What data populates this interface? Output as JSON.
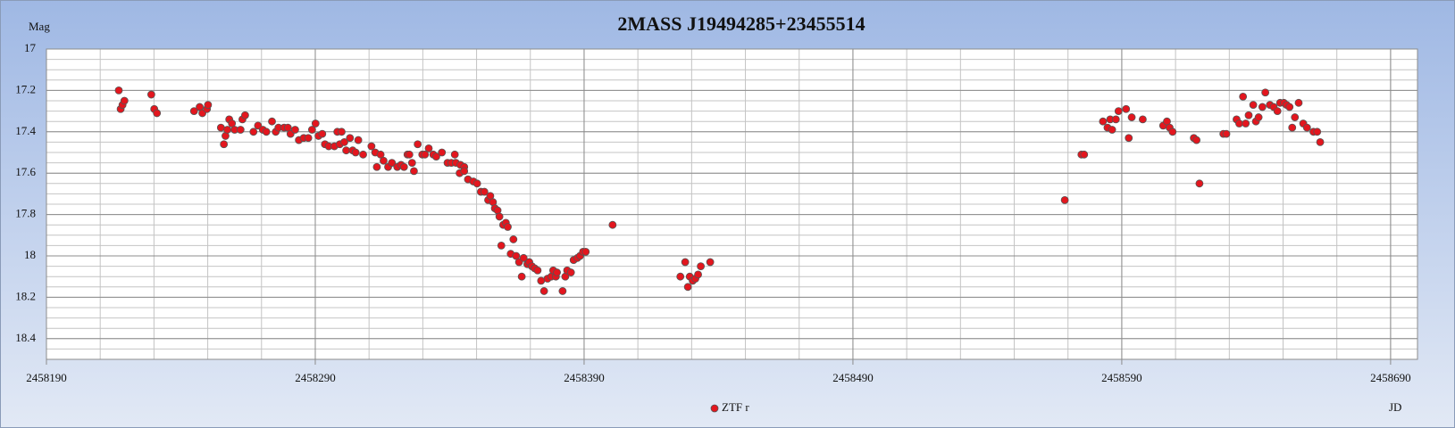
{
  "chart_data": {
    "type": "scatter",
    "title": "2MASS J19494285+23455514",
    "y_label": "Mag",
    "x_label": "JD",
    "xlim": [
      2458190,
      2458700
    ],
    "ylim": [
      17,
      18.5
    ],
    "y_inverted": true,
    "xticks": [
      2458190,
      2458290,
      2458390,
      2458490,
      2458590,
      2458690
    ],
    "yticks": [
      17,
      17.2,
      17.4,
      17.6,
      17.8,
      18,
      18.2,
      18.4
    ],
    "xgrid_step": 20,
    "ygrid_step": 0.05,
    "grid": true,
    "legend": "bottom",
    "series": [
      {
        "name": "ZTF r",
        "color": "#e3161e",
        "x": [
          2458216.9,
          2458217.6,
          2458218.3,
          2458219.0,
          2458229.0,
          2458230.1,
          2458231.1,
          2458244.9,
          2458247.0,
          2458248.0,
          2458249.7,
          2458250.1,
          2458254.9,
          2458256.0,
          2458256.6,
          2458257.3,
          2458258.0,
          2458259.0,
          2458260.0,
          2458262.2,
          2458262.9,
          2458263.9,
          2458267.0,
          2458268.7,
          2458270.5,
          2458271.8,
          2458273.9,
          2458275.3,
          2458276.3,
          2458278.4,
          2458279.8,
          2458280.8,
          2458282.5,
          2458283.9,
          2458285.7,
          2458287.4,
          2458288.8,
          2458290.1,
          2458291.2,
          2458292.6,
          2458293.6,
          2458295.0,
          2458297.1,
          2458298.2,
          2458299.1,
          2458299.8,
          2458300.8,
          2458301.5,
          2458302.9,
          2458303.9,
          2458305.0,
          2458306.0,
          2458307.8,
          2458310.9,
          2458312.3,
          2458312.9,
          2458314.3,
          2458315.4,
          2458317.1,
          2458318.5,
          2458320.5,
          2458321.9,
          2458323.0,
          2458324.3,
          2458325.0,
          2458326.0,
          2458326.7,
          2458328.1,
          2458329.8,
          2458330.8,
          2458332.2,
          2458333.9,
          2458335.0,
          2458337.1,
          2458339.2,
          2458340.6,
          2458341.9,
          2458342.3,
          2458343.7,
          2458344.0,
          2458345.4,
          2458345.4,
          2458346.8,
          2458348.8,
          2458350.2,
          2458351.6,
          2458352.9,
          2458354.3,
          2458355.1,
          2458356.1,
          2458356.8,
          2458357.8,
          2458358.5,
          2458359.2,
          2458359.9,
          2458360.9,
          2458361.6,
          2458362.7,
          2458363.7,
          2458364.7,
          2458365.8,
          2458366.8,
          2458367.5,
          2458368.9,
          2458369.6,
          2458370.6,
          2458371.6,
          2458372.7,
          2458374.0,
          2458375.1,
          2458376.4,
          2458377.8,
          2458378.5,
          2458379.5,
          2458379.9,
          2458382.0,
          2458383.0,
          2458383.7,
          2458385.1,
          2458386.1,
          2458387.5,
          2458388.5,
          2458389.6,
          2458390.6,
          2458400.6,
          2458425.8,
          2458427.6,
          2458428.6,
          2458429.3,
          2458430.4,
          2458431.4,
          2458432.4,
          2458433.4,
          2458436.9,
          2458568.8,
          2458575.0,
          2458576.0,
          2458583.0,
          2458584.7,
          2458585.7,
          2458586.4,
          2458587.8,
          2458588.8,
          2458591.6,
          2458592.6,
          2458593.7,
          2458597.8,
          2458605.4,
          2458606.8,
          2458607.8,
          2458608.9,
          2458616.8,
          2458617.8,
          2458618.9,
          2458627.8,
          2458628.9,
          2458632.7,
          2458633.7,
          2458635.1,
          2458636.1,
          2458637.2,
          2458638.9,
          2458639.9,
          2458640.9,
          2458642.3,
          2458643.4,
          2458645.1,
          2458646.5,
          2458647.9,
          2458648.9,
          2458650.3,
          2458651.3,
          2458652.4,
          2458653.4,
          2458654.4,
          2458655.8,
          2458657.5,
          2458658.9,
          2458661.3,
          2458662.7,
          2458663.8
        ],
        "values": [
          17.2,
          17.29,
          17.27,
          17.25,
          17.22,
          17.29,
          17.31,
          17.3,
          17.28,
          17.31,
          17.29,
          17.27,
          17.38,
          17.46,
          17.42,
          17.39,
          17.34,
          17.36,
          17.39,
          17.39,
          17.34,
          17.32,
          17.4,
          17.37,
          17.39,
          17.4,
          17.35,
          17.4,
          17.38,
          17.38,
          17.38,
          17.41,
          17.39,
          17.44,
          17.43,
          17.43,
          17.39,
          17.36,
          17.42,
          17.41,
          17.46,
          17.47,
          17.47,
          17.4,
          17.46,
          17.4,
          17.45,
          17.49,
          17.43,
          17.49,
          17.5,
          17.44,
          17.51,
          17.47,
          17.5,
          17.57,
          17.51,
          17.54,
          17.57,
          17.55,
          17.57,
          17.56,
          17.57,
          17.51,
          17.51,
          17.55,
          17.59,
          17.46,
          17.51,
          17.51,
          17.48,
          17.51,
          17.52,
          17.5,
          17.55,
          17.55,
          17.51,
          17.55,
          17.6,
          17.56,
          17.57,
          17.59,
          17.63,
          17.64,
          17.65,
          17.69,
          17.69,
          17.73,
          17.71,
          17.74,
          17.77,
          17.78,
          17.81,
          17.95,
          17.85,
          17.84,
          17.86,
          17.99,
          17.92,
          18.0,
          18.03,
          18.1,
          18.01,
          18.04,
          18.03,
          18.05,
          18.06,
          18.07,
          18.12,
          18.17,
          18.11,
          18.1,
          18.07,
          18.1,
          18.08,
          18.17,
          18.1,
          18.07,
          18.08,
          18.02,
          18.01,
          18.0,
          17.98,
          17.98,
          17.85,
          18.1,
          18.03,
          18.15,
          18.1,
          18.12,
          18.11,
          18.09,
          18.05,
          18.03,
          17.73,
          17.51,
          17.51,
          17.35,
          17.38,
          17.34,
          17.39,
          17.34,
          17.3,
          17.29,
          17.43,
          17.33,
          17.34,
          17.37,
          17.35,
          17.38,
          17.4,
          17.43,
          17.44,
          17.65,
          17.41,
          17.41,
          17.34,
          17.36,
          17.23,
          17.36,
          17.32,
          17.27,
          17.35,
          17.33,
          17.28,
          17.21,
          17.27,
          17.28,
          17.3,
          17.26,
          17.26,
          17.27,
          17.28,
          17.38,
          17.33,
          17.26,
          17.36,
          17.38,
          17.4,
          17.4,
          17.45
        ]
      }
    ]
  }
}
